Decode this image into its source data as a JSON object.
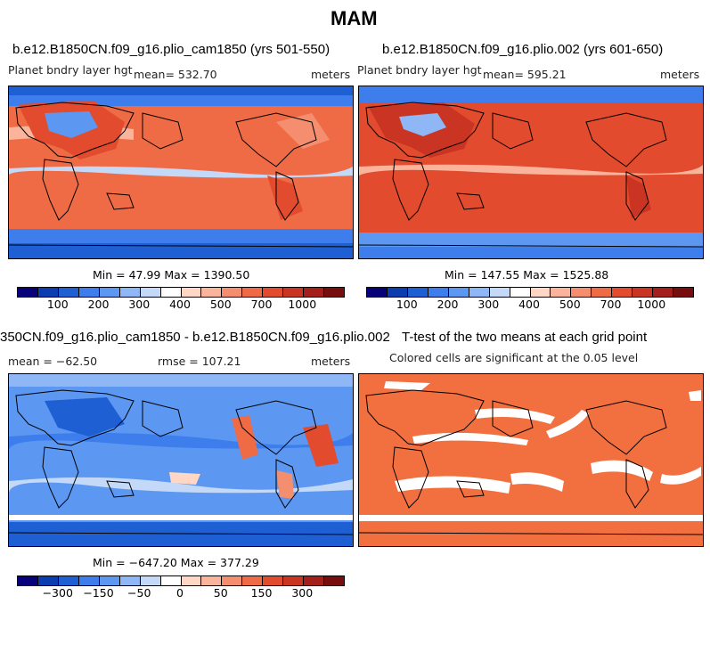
{
  "figure": {
    "title": "MAM"
  },
  "colors": {
    "scale": [
      "#08027a",
      "#0b3cb0",
      "#1f5fd4",
      "#3d7eec",
      "#5c98f2",
      "#8fb6f5",
      "#c4d8f8",
      "#ffffff",
      "#ffd7c4",
      "#f9b49b",
      "#f58d6f",
      "#ef6b46",
      "#e24b2d",
      "#c93522",
      "#a41f1b",
      "#780d0d"
    ],
    "land_line": "#000000",
    "sig": "#f26f3f"
  },
  "panels": {
    "p1": {
      "title": "b.e12.B1850CN.f09_g16.plio_cam1850 (yrs 501-550)",
      "variable": "Planet bndry layer hgt",
      "mean": "mean= 532.70",
      "units": "meters",
      "minmax": "Min =   47.99 Max = 1390.50",
      "ticks": [
        "100",
        "200",
        "300",
        "400",
        "500",
        "700",
        "1000"
      ]
    },
    "p2": {
      "title": "b.e12.B1850CN.f09_g16.plio.002 (yrs 601-650)",
      "variable": "Planet bndry layer hgt",
      "mean": "mean= 595.21",
      "units": "meters",
      "minmax": "Min =  147.55 Max = 1525.88",
      "ticks": [
        "100",
        "200",
        "300",
        "400",
        "500",
        "700",
        "1000"
      ]
    },
    "p3": {
      "title": "350CN.f09_g16.plio_cam1850 - b.e12.B1850CN.f09_g16.plio.002",
      "mean": "mean = −62.50",
      "rmse": "rmse = 107.21",
      "units": "meters",
      "minmax": "Min = −647.20 Max =  377.29",
      "ticks": [
        "−300",
        "−150",
        "−50",
        "0",
        "50",
        "150",
        "300"
      ]
    },
    "p4": {
      "title": "T-test of the two means at each grid point",
      "subtitle": "Colored cells are significant at the 0.05 level"
    }
  }
}
